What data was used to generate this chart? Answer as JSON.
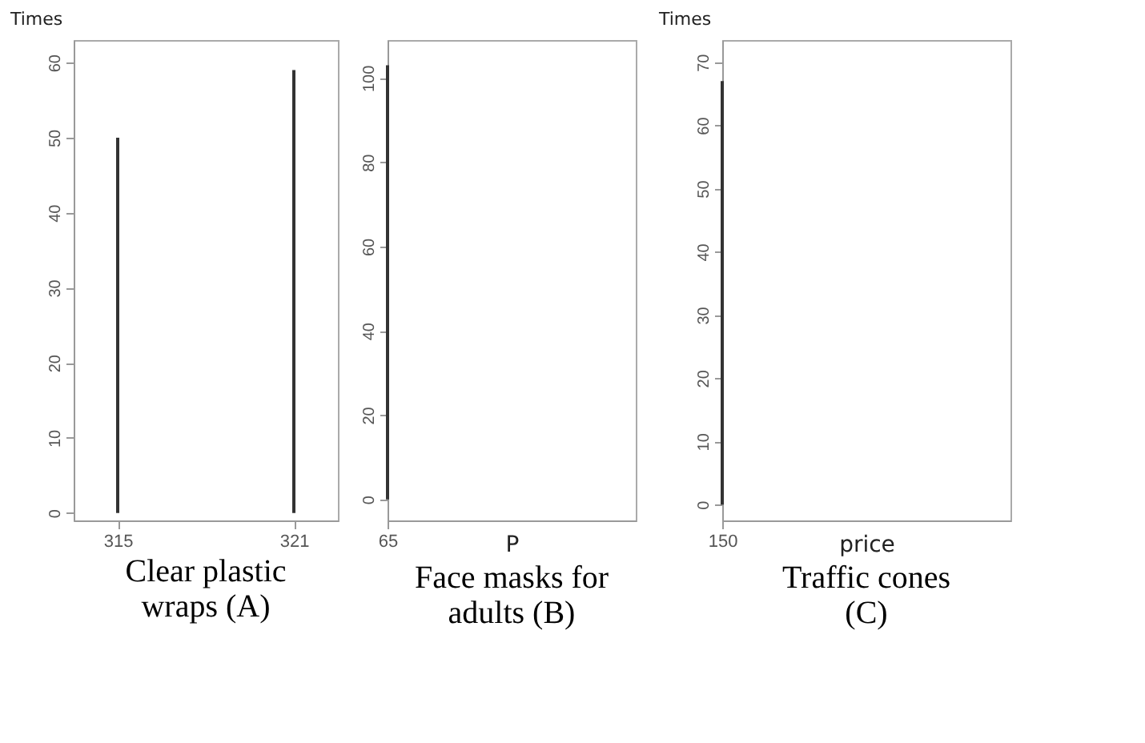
{
  "chart_data": [
    {
      "type": "bar",
      "title": "Clear plastic wraps (A)",
      "ylabel": "Times",
      "categories": [
        "315",
        "321"
      ],
      "values": [
        50,
        59
      ],
      "color": "#333333",
      "ylim": [
        -1,
        63
      ],
      "yticks": [
        0,
        10,
        20,
        30,
        40,
        50,
        60
      ],
      "grid": false
    },
    {
      "type": "bar",
      "title": "Face masks for adults (B)",
      "xlabel": "P",
      "categories": [
        "65"
      ],
      "values": [
        103
      ],
      "color": "#333333",
      "ylim": [
        -5,
        109
      ],
      "yticks": [
        0,
        20,
        40,
        60,
        80,
        100
      ],
      "grid": false
    },
    {
      "type": "bar",
      "title": "Traffic cones (C)",
      "ylabel": "Times",
      "xlabel": "price",
      "categories": [
        "150"
      ],
      "values": [
        67
      ],
      "color": "#333333",
      "ylim": [
        -2.5,
        73.5
      ],
      "yticks": [
        0,
        10,
        20,
        30,
        40,
        50,
        60,
        70
      ],
      "grid": false
    }
  ]
}
